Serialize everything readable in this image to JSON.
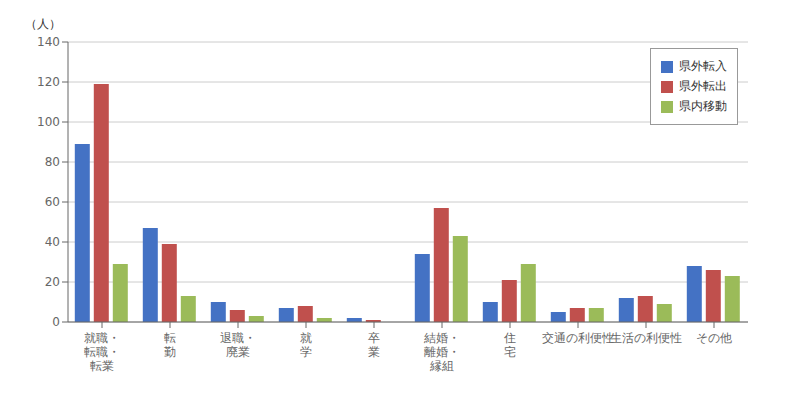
{
  "chart_data": {
    "type": "bar",
    "ylabel": "（人）",
    "categories": [
      "就職・\n転職・\n転業",
      "転\n勤",
      "退職・\n廃業",
      "就\n学",
      "卒\n業",
      "結婚・\n離婚・\n縁組",
      "住\n宅",
      "交通の利便性",
      "生活の利便性",
      "その他"
    ],
    "series": [
      {
        "name": "県外転入",
        "color": "#4472C4",
        "values": [
          89,
          47,
          10,
          7,
          2,
          34,
          10,
          5,
          12,
          28
        ]
      },
      {
        "name": "県外転出",
        "color": "#C0504D",
        "values": [
          119,
          39,
          6,
          8,
          1,
          57,
          21,
          7,
          13,
          26
        ]
      },
      {
        "name": "県内移動",
        "color": "#9BBB59",
        "values": [
          29,
          13,
          3,
          2,
          0,
          43,
          29,
          7,
          9,
          23
        ]
      }
    ],
    "ylim": [
      0,
      140
    ],
    "yticks": [
      0,
      20,
      40,
      60,
      80,
      100,
      120,
      140
    ],
    "grid": true,
    "legend": "upper right"
  }
}
